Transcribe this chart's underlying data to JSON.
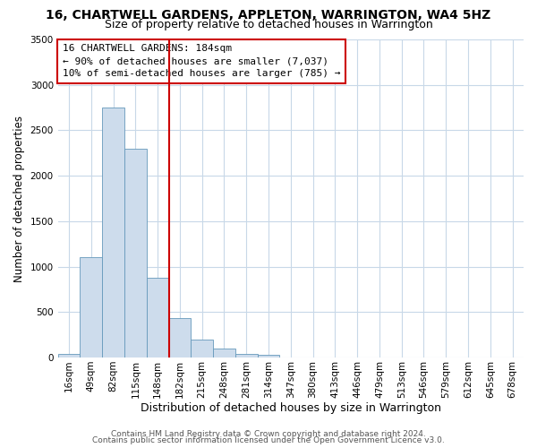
{
  "title_line1": "16, CHARTWELL GARDENS, APPLETON, WARRINGTON, WA4 5HZ",
  "title_line2": "Size of property relative to detached houses in Warrington",
  "xlabel": "Distribution of detached houses by size in Warrington",
  "ylabel": "Number of detached properties",
  "bin_labels": [
    "16sqm",
    "49sqm",
    "82sqm",
    "115sqm",
    "148sqm",
    "182sqm",
    "215sqm",
    "248sqm",
    "281sqm",
    "314sqm",
    "347sqm",
    "380sqm",
    "413sqm",
    "446sqm",
    "479sqm",
    "513sqm",
    "546sqm",
    "579sqm",
    "612sqm",
    "645sqm",
    "678sqm"
  ],
  "bar_values": [
    40,
    1100,
    2750,
    2300,
    880,
    430,
    195,
    100,
    40,
    30,
    0,
    0,
    0,
    0,
    0,
    0,
    0,
    0,
    0,
    0,
    0
  ],
  "bar_color": "#cddcec",
  "bar_edge_color": "#6699bb",
  "vline_color": "#cc0000",
  "vline_index": 5,
  "annotation_text": "16 CHARTWELL GARDENS: 184sqm\n← 90% of detached houses are smaller (7,037)\n10% of semi-detached houses are larger (785) →",
  "annotation_box_color": "#ffffff",
  "annotation_box_edge_color": "#cc0000",
  "ylim": [
    0,
    3500
  ],
  "yticks": [
    0,
    500,
    1000,
    1500,
    2000,
    2500,
    3000,
    3500
  ],
  "footer_line1": "Contains HM Land Registry data © Crown copyright and database right 2024.",
  "footer_line2": "Contains public sector information licensed under the Open Government Licence v3.0.",
  "bg_color": "#ffffff",
  "grid_color": "#c8d8e8",
  "title1_fontsize": 10,
  "title2_fontsize": 9,
  "xlabel_fontsize": 9,
  "ylabel_fontsize": 8.5,
  "tick_fontsize": 7.5,
  "annot_fontsize": 8,
  "footer_fontsize": 6.5
}
